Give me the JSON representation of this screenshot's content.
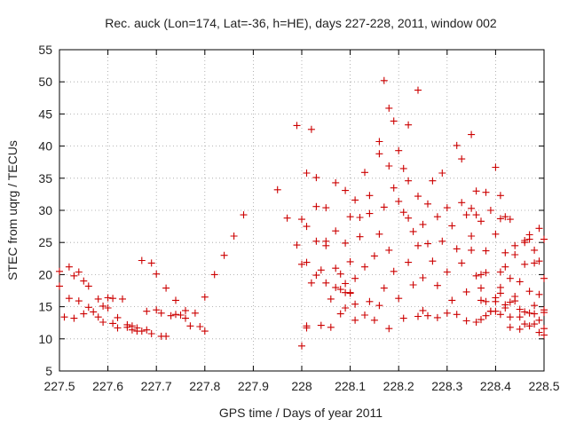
{
  "chart_data": {
    "type": "scatter",
    "title": "Rec. auck (Lon=174, Lat=-36, h=HE), days 227-228, 2011, window 002",
    "xlabel": "GPS time / Days of year 2011",
    "ylabel": "STEC from uqrg / TECUs",
    "xlim": [
      227.5,
      228.5
    ],
    "ylim": [
      5,
      55
    ],
    "xticks": [
      "227.5",
      "227.6",
      "227.7",
      "227.8",
      "227.9",
      "228",
      "228.1",
      "228.2",
      "228.3",
      "228.4",
      "228.5"
    ],
    "yticks": [
      "5",
      "10",
      "15",
      "20",
      "25",
      "30",
      "35",
      "40",
      "45",
      "50",
      "55"
    ],
    "grid": true,
    "marker": "+",
    "color": "#cc0000",
    "points": [
      [
        227.5,
        18.2
      ],
      [
        227.5,
        20.5
      ],
      [
        227.51,
        13.4
      ],
      [
        227.52,
        21.2
      ],
      [
        227.52,
        16.3
      ],
      [
        227.53,
        13.2
      ],
      [
        227.53,
        19.8
      ],
      [
        227.54,
        15.9
      ],
      [
        227.54,
        20.4
      ],
      [
        227.55,
        19.0
      ],
      [
        227.55,
        13.9
      ],
      [
        227.56,
        18.2
      ],
      [
        227.56,
        14.9
      ],
      [
        227.57,
        14.2
      ],
      [
        227.58,
        16.2
      ],
      [
        227.58,
        13.4
      ],
      [
        227.59,
        15.1
      ],
      [
        227.59,
        12.6
      ],
      [
        227.6,
        16.4
      ],
      [
        227.6,
        14.8
      ],
      [
        227.61,
        16.3
      ],
      [
        227.61,
        12.4
      ],
      [
        227.62,
        13.3
      ],
      [
        227.62,
        11.7
      ],
      [
        227.63,
        16.2
      ],
      [
        227.64,
        12.2
      ],
      [
        227.64,
        11.8
      ],
      [
        227.65,
        11.4
      ],
      [
        227.65,
        12.0
      ],
      [
        227.66,
        11.7
      ],
      [
        227.66,
        11.2
      ],
      [
        227.67,
        11.2
      ],
      [
        227.67,
        22.2
      ],
      [
        227.68,
        11.4
      ],
      [
        227.68,
        14.3
      ],
      [
        227.69,
        21.8
      ],
      [
        227.69,
        10.8
      ],
      [
        227.7,
        14.5
      ],
      [
        227.7,
        20.1
      ],
      [
        227.71,
        10.4
      ],
      [
        227.71,
        14.0
      ],
      [
        227.72,
        10.4
      ],
      [
        227.72,
        17.9
      ],
      [
        227.73,
        13.6
      ],
      [
        227.74,
        16.0
      ],
      [
        227.74,
        13.8
      ],
      [
        227.75,
        13.7
      ],
      [
        227.76,
        14.4
      ],
      [
        227.76,
        13.2
      ],
      [
        227.77,
        12.0
      ],
      [
        227.78,
        14.0
      ],
      [
        227.79,
        11.9
      ],
      [
        227.8,
        11.2
      ],
      [
        227.8,
        16.5
      ],
      [
        227.82,
        20.0
      ],
      [
        227.84,
        23.0
      ],
      [
        227.86,
        26.0
      ],
      [
        227.88,
        29.3
      ],
      [
        227.95,
        33.2
      ],
      [
        227.97,
        28.8
      ],
      [
        227.99,
        43.2
      ],
      [
        227.99,
        24.6
      ],
      [
        228.01,
        35.8
      ],
      [
        228.01,
        21.9
      ],
      [
        228.03,
        30.6
      ],
      [
        228.03,
        19.9
      ],
      [
        228.05,
        25.2
      ],
      [
        228.05,
        18.7
      ],
      [
        228.07,
        21.0
      ],
      [
        228.07,
        18.0
      ],
      [
        228.08,
        17.7
      ],
      [
        228.09,
        18.6
      ],
      [
        228.09,
        17.2
      ],
      [
        228.1,
        17.1
      ],
      [
        228.11,
        15.4
      ],
      [
        228.0,
        8.9
      ],
      [
        228.01,
        11.7
      ],
      [
        228.01,
        12.0
      ],
      [
        228.02,
        42.6
      ],
      [
        228.0,
        28.6
      ],
      [
        228.0,
        21.6
      ],
      [
        228.01,
        27.5
      ],
      [
        228.02,
        18.7
      ],
      [
        228.03,
        35.1
      ],
      [
        228.03,
        25.2
      ],
      [
        228.04,
        20.7
      ],
      [
        228.04,
        12.1
      ],
      [
        228.05,
        30.4
      ],
      [
        228.05,
        24.5
      ],
      [
        228.06,
        16.2
      ],
      [
        228.06,
        11.8
      ],
      [
        228.07,
        34.3
      ],
      [
        228.07,
        26.8
      ],
      [
        228.08,
        20.1
      ],
      [
        228.08,
        13.9
      ],
      [
        228.09,
        33.1
      ],
      [
        228.09,
        24.9
      ],
      [
        228.09,
        14.8
      ],
      [
        228.1,
        29.0
      ],
      [
        228.1,
        22.0
      ],
      [
        228.1,
        17.2
      ],
      [
        228.11,
        31.6
      ],
      [
        228.11,
        19.4
      ],
      [
        228.11,
        12.9
      ],
      [
        228.12,
        28.9
      ],
      [
        228.12,
        25.9
      ],
      [
        228.13,
        35.9
      ],
      [
        228.13,
        21.2
      ],
      [
        228.13,
        13.7
      ],
      [
        228.14,
        32.3
      ],
      [
        228.14,
        29.5
      ],
      [
        228.14,
        15.8
      ],
      [
        228.15,
        22.9
      ],
      [
        228.15,
        12.9
      ],
      [
        228.16,
        40.7
      ],
      [
        228.16,
        38.8
      ],
      [
        228.16,
        26.3
      ],
      [
        228.16,
        15.2
      ],
      [
        228.17,
        50.2
      ],
      [
        228.17,
        30.5
      ],
      [
        228.17,
        17.9
      ],
      [
        228.18,
        45.9
      ],
      [
        228.18,
        36.9
      ],
      [
        228.18,
        23.8
      ],
      [
        228.18,
        11.6
      ],
      [
        228.19,
        43.9
      ],
      [
        228.19,
        33.5
      ],
      [
        228.19,
        20.5
      ],
      [
        228.2,
        39.3
      ],
      [
        228.2,
        31.4
      ],
      [
        228.2,
        16.3
      ],
      [
        228.21,
        36.5
      ],
      [
        228.21,
        29.7
      ],
      [
        228.21,
        13.2
      ],
      [
        228.22,
        34.6
      ],
      [
        228.22,
        43.3
      ],
      [
        228.22,
        28.8
      ],
      [
        228.22,
        21.9
      ],
      [
        228.23,
        26.7
      ],
      [
        228.23,
        18.4
      ],
      [
        228.24,
        48.7
      ],
      [
        228.24,
        32.2
      ],
      [
        228.24,
        24.5
      ],
      [
        228.24,
        13.5
      ],
      [
        228.25,
        27.8
      ],
      [
        228.25,
        19.5
      ],
      [
        228.25,
        14.4
      ],
      [
        228.26,
        31.0
      ],
      [
        228.26,
        24.8
      ],
      [
        228.26,
        13.6
      ],
      [
        228.27,
        34.6
      ],
      [
        228.27,
        22.1
      ],
      [
        228.28,
        29.0
      ],
      [
        228.28,
        18.3
      ],
      [
        228.28,
        13.3
      ],
      [
        228.29,
        35.8
      ],
      [
        228.29,
        25.2
      ],
      [
        228.3,
        30.4
      ],
      [
        228.3,
        20.4
      ],
      [
        228.3,
        14.0
      ],
      [
        228.31,
        27.6
      ],
      [
        228.31,
        16.0
      ],
      [
        228.32,
        40.1
      ],
      [
        228.32,
        24.0
      ],
      [
        228.32,
        13.8
      ],
      [
        228.33,
        38.0
      ],
      [
        228.33,
        31.2
      ],
      [
        228.33,
        21.8
      ],
      [
        228.34,
        29.3
      ],
      [
        228.34,
        17.3
      ],
      [
        228.34,
        12.8
      ],
      [
        228.35,
        41.8
      ],
      [
        228.35,
        26.0
      ],
      [
        228.35,
        23.8
      ],
      [
        228.36,
        33.0
      ],
      [
        228.36,
        19.8
      ],
      [
        228.36,
        12.6
      ],
      [
        228.37,
        28.3
      ],
      [
        228.37,
        16.0
      ],
      [
        228.37,
        13.0
      ],
      [
        228.38,
        32.8
      ],
      [
        228.38,
        23.7
      ],
      [
        228.38,
        20.3
      ],
      [
        228.39,
        30.0
      ],
      [
        228.39,
        14.3
      ],
      [
        228.4,
        36.7
      ],
      [
        228.4,
        26.3
      ],
      [
        228.4,
        14.3
      ],
      [
        228.41,
        32.3
      ],
      [
        228.41,
        28.7
      ],
      [
        228.41,
        18.0
      ],
      [
        228.42,
        29.0
      ],
      [
        228.42,
        21.2
      ],
      [
        228.42,
        15.3
      ],
      [
        228.43,
        28.6
      ],
      [
        228.43,
        19.4
      ],
      [
        228.43,
        11.8
      ],
      [
        228.44,
        24.5
      ],
      [
        228.44,
        15.9
      ],
      [
        228.45,
        18.9
      ],
      [
        228.45,
        11.5
      ],
      [
        228.46,
        25.0
      ],
      [
        228.46,
        21.6
      ],
      [
        228.46,
        12.3
      ],
      [
        228.47,
        25.5
      ],
      [
        228.47,
        17.4
      ],
      [
        228.47,
        12.0
      ],
      [
        228.48,
        23.8
      ],
      [
        228.48,
        15.2
      ],
      [
        228.48,
        12.3
      ],
      [
        228.49,
        22.1
      ],
      [
        228.49,
        16.9
      ],
      [
        228.49,
        12.9
      ],
      [
        228.5,
        25.5
      ],
      [
        228.5,
        19.4
      ],
      [
        228.5,
        11.6
      ],
      [
        228.35,
        30.3
      ],
      [
        228.36,
        29.3
      ],
      [
        228.37,
        20.0
      ],
      [
        228.37,
        17.9
      ],
      [
        228.38,
        15.8
      ],
      [
        228.38,
        13.6
      ],
      [
        228.39,
        14.3
      ],
      [
        228.4,
        16.4
      ],
      [
        228.4,
        15.8
      ],
      [
        228.41,
        20.4
      ],
      [
        228.41,
        17.1
      ],
      [
        228.41,
        13.8
      ],
      [
        228.42,
        23.4
      ],
      [
        228.42,
        14.8
      ],
      [
        228.43,
        15.7
      ],
      [
        228.43,
        13.4
      ],
      [
        228.44,
        23.1
      ],
      [
        228.44,
        16.6
      ],
      [
        228.45,
        14.6
      ],
      [
        228.45,
        13.4
      ],
      [
        228.46,
        25.3
      ],
      [
        228.46,
        14.2
      ],
      [
        228.47,
        26.2
      ],
      [
        228.47,
        14.0
      ],
      [
        228.48,
        21.8
      ],
      [
        228.48,
        13.9
      ],
      [
        228.49,
        27.2
      ],
      [
        228.49,
        11.0
      ],
      [
        228.5,
        14.5
      ],
      [
        228.5,
        10.6
      ],
      [
        228.5,
        14.1
      ]
    ]
  }
}
